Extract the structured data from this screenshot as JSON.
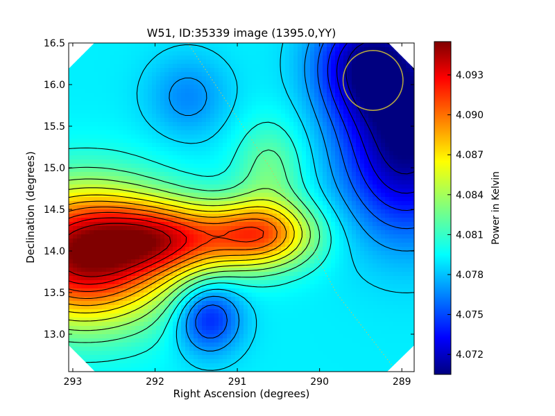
{
  "chart_data": [
    {
      "type": "heatmap",
      "title": "W51, ID:35339 image (1395.0,YY)",
      "xlabel": "Right Ascension (degrees)",
      "ylabel": "Declination (degrees)",
      "xlim": [
        293.05,
        288.85
      ],
      "ylim": [
        12.55,
        16.5
      ],
      "x_ticks": [
        293,
        292,
        291,
        290,
        289
      ],
      "x_tick_labels": [
        "293",
        "292",
        "291",
        "290",
        "289"
      ],
      "y_ticks": [
        13.0,
        13.5,
        14.0,
        14.5,
        15.0,
        15.5,
        16.0,
        16.5
      ],
      "y_tick_labels": [
        "13.0",
        "13.5",
        "14.0",
        "14.5",
        "15.0",
        "15.5",
        "16.0",
        "16.5"
      ],
      "grid": false,
      "colormap": "jet",
      "contours": true,
      "value_range": [
        4.0705,
        4.0955
      ],
      "features": [
        {
          "kind": "peak",
          "ra": 292.85,
          "dec": 13.95,
          "value": 4.095
        },
        {
          "kind": "peak",
          "ra": 290.7,
          "dec": 14.2,
          "value": 4.089
        },
        {
          "kind": "minimum",
          "ra": 288.95,
          "dec": 15.3,
          "value": 4.0705
        },
        {
          "kind": "minimum",
          "ra": 289.4,
          "dec": 16.25,
          "value": 4.072
        },
        {
          "kind": "minimum",
          "ra": 291.35,
          "dec": 13.2,
          "value": 4.074
        },
        {
          "kind": "minimum",
          "ra": 291.6,
          "dec": 15.85,
          "value": 4.077
        }
      ],
      "beam_circle": {
        "ra": 289.35,
        "dec": 16.05,
        "radius_deg": 0.36,
        "color": "#b5a642"
      },
      "dotted_track": {
        "color": "#c8c864",
        "points": [
          [
            291.6,
            16.5
          ],
          [
            291.0,
            15.6
          ],
          [
            290.6,
            15.0
          ],
          [
            289.8,
            13.5
          ],
          [
            289.1,
            12.6
          ]
        ]
      },
      "colorbar": {
        "label": "Power in Kelvin",
        "ticks": [
          4.072,
          4.075,
          4.078,
          4.081,
          4.084,
          4.087,
          4.09,
          4.093
        ],
        "tick_labels": [
          "4.072",
          "4.075",
          "4.078",
          "4.081",
          "4.084",
          "4.087",
          "4.090",
          "4.093"
        ]
      }
    }
  ]
}
